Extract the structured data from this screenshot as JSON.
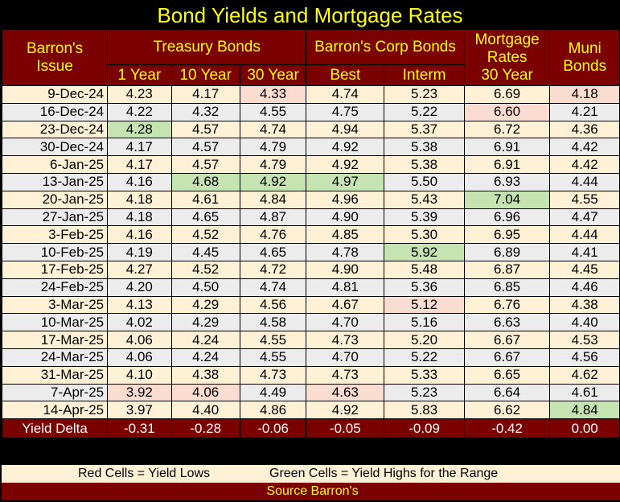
{
  "title": "Bond Yields and Mortgage Rates",
  "headers": {
    "issue": [
      "Barron's",
      "Issue"
    ],
    "treasury": "Treasury Bonds",
    "corp": "Barron's Corp Bonds",
    "mortgage": [
      "Mortgage",
      "Rates",
      "30 Year"
    ],
    "muni": [
      "Muni",
      "Bonds"
    ],
    "sub": [
      "1 Year",
      "10 Year",
      "30 Year",
      "Best",
      "Interm"
    ]
  },
  "rows": [
    {
      "date": "9-Dec-24",
      "vals": [
        "4.23",
        "4.17",
        "4.33",
        "4.74",
        "5.23",
        "6.69",
        "4.18"
      ],
      "hl": [
        "",
        "",
        "r",
        "",
        "",
        "",
        "r"
      ]
    },
    {
      "date": "16-Dec-24",
      "vals": [
        "4.22",
        "4.32",
        "4.55",
        "4.75",
        "5.22",
        "6.60",
        "4.21"
      ],
      "hl": [
        "",
        "",
        "",
        "",
        "",
        "r",
        ""
      ]
    },
    {
      "date": "23-Dec-24",
      "vals": [
        "4.28",
        "4.57",
        "4.74",
        "4.94",
        "5.37",
        "6.72",
        "4.36"
      ],
      "hl": [
        "g",
        "",
        "",
        "",
        "",
        "",
        ""
      ]
    },
    {
      "date": "30-Dec-24",
      "vals": [
        "4.17",
        "4.57",
        "4.79",
        "4.92",
        "5.38",
        "6.91",
        "4.42"
      ],
      "hl": [
        "",
        "",
        "",
        "",
        "",
        "",
        ""
      ]
    },
    {
      "date": "6-Jan-25",
      "vals": [
        "4.17",
        "4.57",
        "4.79",
        "4.92",
        "5.38",
        "6.91",
        "4.42"
      ],
      "hl": [
        "",
        "",
        "",
        "",
        "",
        "",
        ""
      ]
    },
    {
      "date": "13-Jan-25",
      "vals": [
        "4.16",
        "4.68",
        "4.92",
        "4.97",
        "5.50",
        "6.93",
        "4.44"
      ],
      "hl": [
        "",
        "g",
        "g",
        "g",
        "",
        "",
        ""
      ]
    },
    {
      "date": "20-Jan-25",
      "vals": [
        "4.18",
        "4.61",
        "4.84",
        "4.96",
        "5.43",
        "7.04",
        "4.55"
      ],
      "hl": [
        "",
        "",
        "",
        "",
        "",
        "g",
        ""
      ]
    },
    {
      "date": "27-Jan-25",
      "vals": [
        "4.18",
        "4.65",
        "4.87",
        "4.90",
        "5.39",
        "6.96",
        "4.47"
      ],
      "hl": [
        "",
        "",
        "",
        "",
        "",
        "",
        ""
      ]
    },
    {
      "date": "3-Feb-25",
      "vals": [
        "4.16",
        "4.52",
        "4.76",
        "4.85",
        "5.30",
        "6.95",
        "4.44"
      ],
      "hl": [
        "",
        "",
        "",
        "",
        "",
        "",
        ""
      ]
    },
    {
      "date": "10-Feb-25",
      "vals": [
        "4.19",
        "4.45",
        "4.65",
        "4.78",
        "5.92",
        "6.89",
        "4.41"
      ],
      "hl": [
        "",
        "",
        "",
        "",
        "g",
        "",
        ""
      ]
    },
    {
      "date": "17-Feb-25",
      "vals": [
        "4.27",
        "4.52",
        "4.72",
        "4.90",
        "5.48",
        "6.87",
        "4.45"
      ],
      "hl": [
        "",
        "",
        "",
        "",
        "",
        "",
        ""
      ]
    },
    {
      "date": "24-Feb-25",
      "vals": [
        "4.20",
        "4.50",
        "4.74",
        "4.81",
        "5.36",
        "6.85",
        "4.46"
      ],
      "hl": [
        "",
        "",
        "",
        "",
        "",
        "",
        ""
      ]
    },
    {
      "date": "3-Mar-25",
      "vals": [
        "4.13",
        "4.29",
        "4.56",
        "4.67",
        "5.12",
        "6.76",
        "4.38"
      ],
      "hl": [
        "",
        "",
        "",
        "",
        "r",
        "",
        ""
      ]
    },
    {
      "date": "10-Mar-25",
      "vals": [
        "4.02",
        "4.29",
        "4.58",
        "4.70",
        "5.16",
        "6.63",
        "4.40"
      ],
      "hl": [
        "",
        "",
        "",
        "",
        "",
        "",
        ""
      ]
    },
    {
      "date": "17-Mar-25",
      "vals": [
        "4.06",
        "4.24",
        "4.55",
        "4.73",
        "5.20",
        "6.67",
        "4.53"
      ],
      "hl": [
        "",
        "",
        "",
        "",
        "",
        "",
        ""
      ]
    },
    {
      "date": "24-Mar-25",
      "vals": [
        "4.06",
        "4.24",
        "4.55",
        "4.70",
        "5.22",
        "6.67",
        "4.56"
      ],
      "hl": [
        "",
        "",
        "",
        "",
        "",
        "",
        ""
      ]
    },
    {
      "date": "31-Mar-25",
      "vals": [
        "4.10",
        "4.38",
        "4.73",
        "4.73",
        "5.33",
        "6.65",
        "4.62"
      ],
      "hl": [
        "",
        "",
        "",
        "",
        "",
        "",
        ""
      ]
    },
    {
      "date": "7-Apr-25",
      "vals": [
        "3.92",
        "4.06",
        "4.49",
        "4.63",
        "5.23",
        "6.64",
        "4.61"
      ],
      "hl": [
        "r",
        "r",
        "",
        "r",
        "",
        "",
        ""
      ]
    },
    {
      "date": "14-Apr-25",
      "vals": [
        "3.97",
        "4.40",
        "4.86",
        "4.92",
        "5.83",
        "6.62",
        "4.84"
      ],
      "hl": [
        "",
        "",
        "",
        "",
        "",
        "",
        "g"
      ]
    }
  ],
  "delta": {
    "label": "Yield Delta",
    "vals": [
      "-0.31",
      "-0.28",
      "-0.06",
      "-0.05",
      "-0.09",
      "-0.42",
      "0.00"
    ]
  },
  "legend": {
    "red": "Red Cells = Yield Lows",
    "green": "Green Cells = Yield Highs for the Range"
  },
  "source": "Source Barron's",
  "colors": {
    "header_bg": "#7b0000",
    "header_text": "#ffff00",
    "row_odd": "#fef1d6",
    "row_even": "#ececec",
    "highlight_low": "#fbdcd0",
    "highlight_high": "#c6e3b2"
  }
}
